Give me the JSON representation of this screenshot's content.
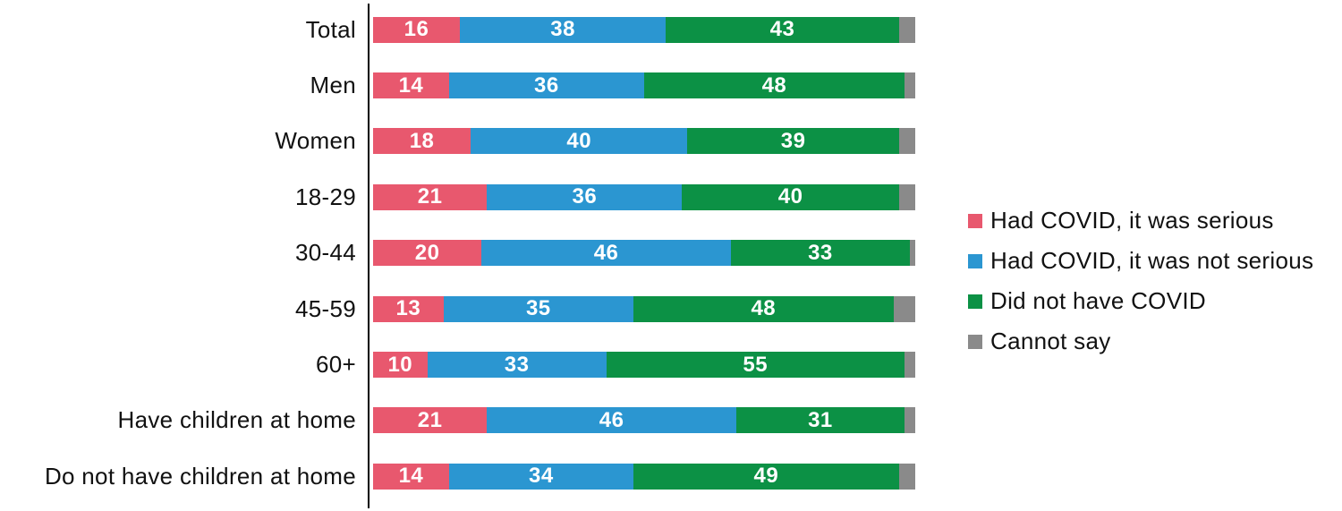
{
  "chart_data": {
    "type": "bar",
    "orientation": "horizontal",
    "stacked": true,
    "unit": "percent",
    "xlim": [
      0,
      100
    ],
    "grid": false,
    "legend_position": "right",
    "value_label_color": "#FFFFFF",
    "axis_color": "#000000",
    "categories": [
      "Total",
      "Men",
      "Women",
      "18-29",
      "30-44",
      "45-59",
      "60+",
      "Have children at home",
      "Do not have children at home"
    ],
    "series": [
      {
        "name": "Had COVID, it was serious",
        "color": "#E8586E",
        "show_value_labels": true,
        "values": [
          16,
          14,
          18,
          21,
          20,
          13,
          10,
          21,
          14
        ]
      },
      {
        "name": "Had COVID, it was not serious",
        "color": "#2B96D1",
        "show_value_labels": true,
        "values": [
          38,
          36,
          40,
          36,
          46,
          35,
          33,
          46,
          34
        ]
      },
      {
        "name": "Did not have COVID",
        "color": "#0C9145",
        "show_value_labels": true,
        "values": [
          43,
          48,
          39,
          40,
          33,
          48,
          55,
          31,
          49
        ]
      },
      {
        "name": "Cannot say",
        "color": "#8A8A8A",
        "show_value_labels": false,
        "values": [
          3,
          2,
          3,
          3,
          1,
          4,
          2,
          2,
          3
        ]
      }
    ]
  }
}
